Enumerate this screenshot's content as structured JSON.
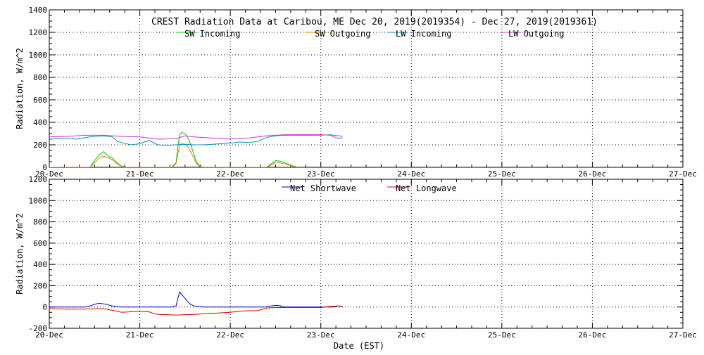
{
  "chart_data": [
    {
      "type": "line",
      "title": "CREST Radiation Data at Caribou, ME   Dec 20, 2019(2019354) - Dec 27, 2019(2019361)",
      "xlabel": "",
      "ylabel": "Radiation, W/m^2",
      "ylim": [
        0,
        1400
      ],
      "yticks": [
        0,
        200,
        400,
        600,
        800,
        1000,
        1200,
        1400
      ],
      "x_tick_labels": [
        "20-Dec",
        "21-Dec",
        "22-Dec",
        "23-Dec",
        "24-Dec",
        "25-Dec",
        "26-Dec",
        "27-Dec"
      ],
      "xlim": [
        0,
        7
      ],
      "grid": true,
      "legend_position": "top",
      "series": [
        {
          "name": "SW Incoming",
          "color": "#00cc00",
          "x": [
            0.0,
            0.45,
            0.5,
            0.55,
            0.6,
            0.65,
            0.7,
            0.75,
            0.8,
            0.85,
            1.35,
            1.4,
            1.42,
            1.44,
            1.46,
            1.5,
            1.54,
            1.58,
            1.62,
            1.66,
            1.7,
            2.0,
            2.4,
            2.45,
            2.5,
            2.55,
            2.6,
            2.65,
            2.7,
            2.75
          ],
          "y": [
            0,
            0,
            60,
            110,
            140,
            100,
            80,
            40,
            10,
            0,
            0,
            40,
            180,
            290,
            310,
            300,
            250,
            160,
            60,
            10,
            0,
            0,
            0,
            30,
            60,
            55,
            40,
            25,
            10,
            0
          ]
        },
        {
          "name": "SW Outgoing",
          "color": "#e08000",
          "x": [
            0.0,
            0.45,
            0.5,
            0.55,
            0.6,
            0.65,
            0.7,
            0.75,
            0.8,
            0.85,
            1.35,
            1.4,
            1.42,
            1.44,
            1.46,
            1.5,
            1.54,
            1.58,
            1.62,
            1.66,
            1.7,
            2.0,
            2.4,
            2.45,
            2.5,
            2.55,
            2.6,
            2.65,
            2.7,
            2.75
          ],
          "y": [
            0,
            0,
            40,
            80,
            100,
            85,
            65,
            30,
            8,
            0,
            0,
            30,
            120,
            190,
            210,
            205,
            170,
            110,
            40,
            5,
            0,
            0,
            0,
            20,
            45,
            40,
            30,
            20,
            8,
            0
          ]
        },
        {
          "name": "LW Incoming",
          "color": "#0090c0",
          "x": [
            0.0,
            0.1,
            0.2,
            0.3,
            0.4,
            0.5,
            0.6,
            0.7,
            0.75,
            0.8,
            0.9,
            1.0,
            1.1,
            1.2,
            1.3,
            1.4,
            1.5,
            1.6,
            1.7,
            1.8,
            1.9,
            2.0,
            2.1,
            2.2,
            2.3,
            2.4,
            2.5,
            2.6,
            2.7,
            2.8,
            2.9,
            3.0,
            3.1,
            3.2,
            3.24
          ],
          "y": [
            250,
            255,
            260,
            250,
            265,
            275,
            280,
            270,
            230,
            220,
            200,
            210,
            240,
            200,
            195,
            200,
            205,
            200,
            200,
            205,
            210,
            215,
            225,
            220,
            230,
            265,
            280,
            285,
            285,
            285,
            285,
            285,
            290,
            280,
            275
          ]
        },
        {
          "name": "LW Outgoing",
          "color": "#cc33cc",
          "x": [
            0.0,
            0.2,
            0.4,
            0.6,
            0.8,
            1.0,
            1.2,
            1.4,
            1.5,
            1.6,
            1.8,
            2.0,
            2.2,
            2.4,
            2.6,
            2.8,
            3.0,
            3.1,
            3.15,
            3.2,
            3.24
          ],
          "y": [
            270,
            275,
            285,
            285,
            275,
            270,
            250,
            255,
            280,
            270,
            260,
            255,
            260,
            280,
            290,
            290,
            290,
            285,
            270,
            255,
            265
          ]
        }
      ]
    },
    {
      "type": "line",
      "title": "",
      "xlabel": "Date (EST)",
      "ylabel": "Radiation, W/m^2",
      "ylim": [
        -200,
        1200
      ],
      "yticks": [
        -200,
        0,
        200,
        400,
        600,
        800,
        1000,
        1200
      ],
      "x_tick_labels": [
        "20-Dec",
        "21-Dec",
        "22-Dec",
        "23-Dec",
        "24-Dec",
        "25-Dec",
        "26-Dec",
        "27-Dec"
      ],
      "xlim": [
        0,
        7
      ],
      "grid": true,
      "legend_position": "top",
      "series": [
        {
          "name": "Net Shortwave",
          "color": "#0000cc",
          "x": [
            0.0,
            0.4,
            0.45,
            0.5,
            0.55,
            0.6,
            0.65,
            0.7,
            0.75,
            0.8,
            0.85,
            1.35,
            1.4,
            1.42,
            1.44,
            1.46,
            1.48,
            1.52,
            1.56,
            1.6,
            1.66,
            1.7,
            2.4,
            2.45,
            2.5,
            2.55,
            2.6,
            3.15,
            3.2,
            3.24
          ],
          "y": [
            0,
            0,
            10,
            25,
            35,
            30,
            20,
            10,
            2,
            0,
            0,
            0,
            10,
            80,
            140,
            120,
            100,
            60,
            25,
            10,
            2,
            0,
            0,
            10,
            15,
            12,
            0,
            0,
            10,
            0
          ]
        },
        {
          "name": "Net Longwave",
          "color": "#dd0000",
          "x": [
            0.0,
            0.2,
            0.4,
            0.6,
            0.75,
            0.8,
            0.9,
            1.0,
            1.1,
            1.15,
            1.2,
            1.4,
            1.6,
            1.8,
            1.9,
            2.0,
            2.1,
            2.2,
            2.3,
            2.4,
            2.5,
            2.7,
            3.0,
            3.1,
            3.2,
            3.24
          ],
          "y": [
            -15,
            -20,
            -20,
            -15,
            -40,
            -50,
            -45,
            -40,
            -45,
            -60,
            -70,
            -75,
            -70,
            -60,
            -55,
            -50,
            -40,
            -35,
            -35,
            -10,
            -5,
            -5,
            -5,
            5,
            10,
            5
          ]
        }
      ]
    }
  ]
}
